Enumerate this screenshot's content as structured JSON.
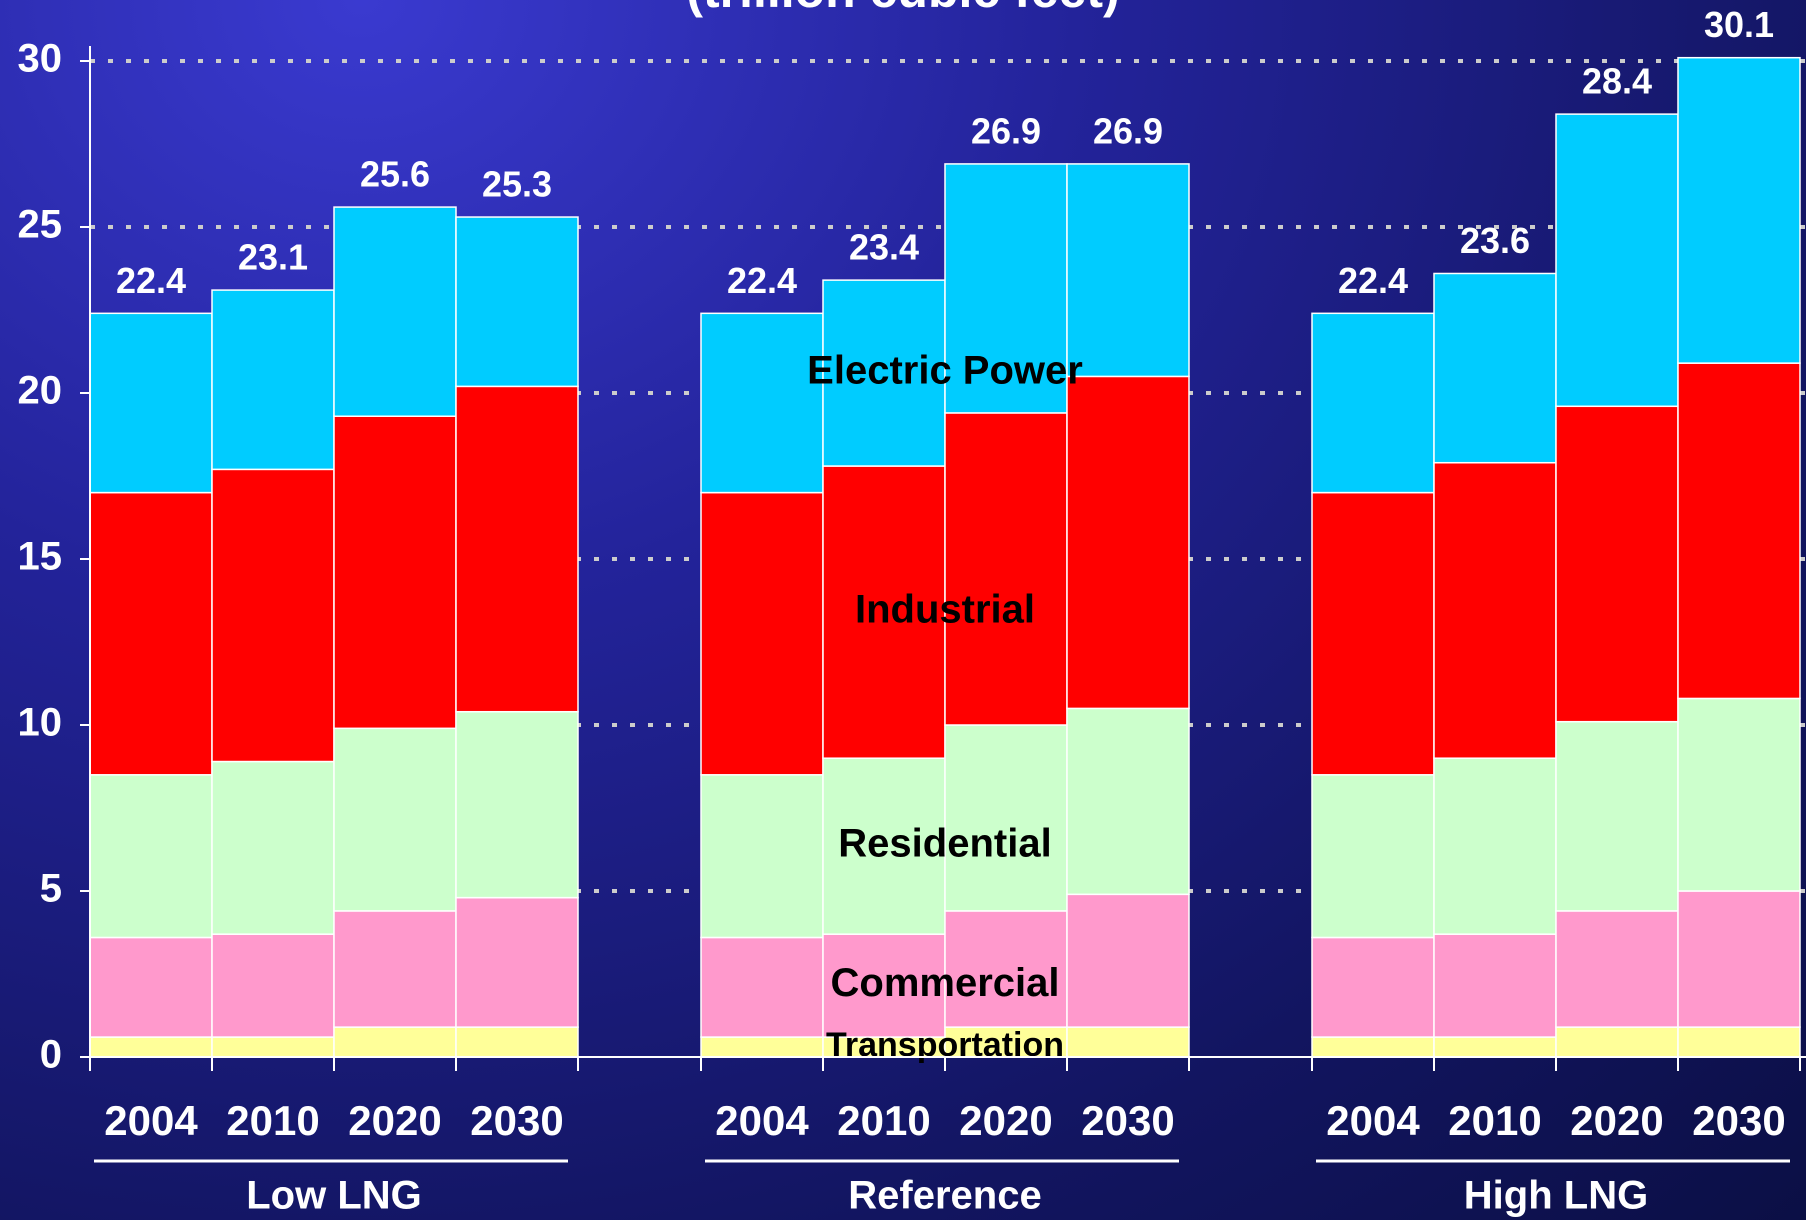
{
  "chart_data": {
    "type": "stacked_bar",
    "title": "(trillion cubic feet)",
    "groups": [
      "Low LNG",
      "Reference",
      "High LNG"
    ],
    "categories": [
      "2004",
      "2010",
      "2020",
      "2030",
      "2004",
      "2010",
      "2020",
      "2030",
      "2004",
      "2010",
      "2020",
      "2030"
    ],
    "series": [
      {
        "name": "Transportation",
        "color": "#ffff99",
        "values": [
          0.6,
          0.6,
          0.9,
          0.9,
          0.6,
          0.6,
          0.9,
          0.9,
          0.6,
          0.6,
          0.9,
          0.9
        ]
      },
      {
        "name": "Commercial",
        "color": "#ff99cc",
        "values": [
          3.0,
          3.1,
          3.5,
          3.9,
          3.0,
          3.1,
          3.5,
          4.0,
          3.0,
          3.1,
          3.5,
          4.1
        ]
      },
      {
        "name": "Residential",
        "color": "#ccffcc",
        "values": [
          4.9,
          5.2,
          5.5,
          5.6,
          4.9,
          5.3,
          5.6,
          5.6,
          4.9,
          5.3,
          5.7,
          5.8
        ]
      },
      {
        "name": "Industrial",
        "color": "#ff0000",
        "values": [
          8.5,
          8.8,
          9.4,
          9.8,
          8.5,
          8.8,
          9.4,
          10.0,
          8.5,
          8.9,
          9.5,
          10.1
        ]
      },
      {
        "name": "Electric Power",
        "color": "#00ccff",
        "values": [
          5.4,
          5.4,
          6.3,
          5.1,
          5.4,
          5.6,
          7.5,
          6.4,
          5.4,
          5.7,
          8.8,
          9.2
        ]
      }
    ],
    "totals": [
      22.4,
      23.1,
      25.6,
      25.3,
      22.4,
      23.4,
      26.9,
      26.9,
      22.4,
      23.6,
      28.4,
      30.1
    ],
    "ylim": [
      0,
      30
    ],
    "yticks": [
      0,
      5,
      10,
      15,
      20,
      25,
      30
    ],
    "grid": true
  }
}
